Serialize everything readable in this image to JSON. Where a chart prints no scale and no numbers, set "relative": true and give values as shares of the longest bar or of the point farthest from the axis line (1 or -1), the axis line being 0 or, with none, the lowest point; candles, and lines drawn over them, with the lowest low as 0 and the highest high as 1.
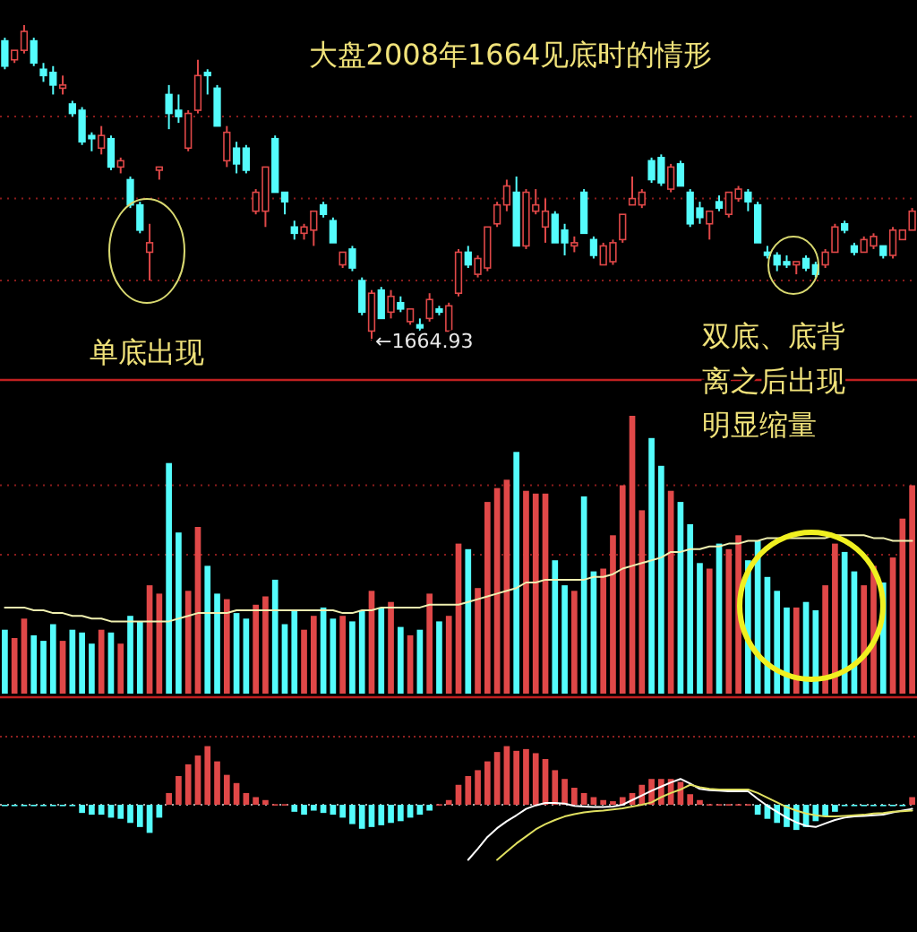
{
  "chart_data": [
    {
      "type": "candlestick",
      "relative": true,
      "title": "大盘2008年1664见底时的情形",
      "annotations": [
        "单底出现",
        "←1664.93",
        "双底、底背离之后出现明显缩量"
      ],
      "ref_lines": [
        {
          "axis": "y",
          "value": 0.71,
          "color": "#8a1c1c",
          "line_style": "dotted"
        },
        {
          "axis": "y",
          "value": 0.45,
          "color": "#8a1c1c",
          "line_style": "dotted"
        },
        {
          "axis": "y",
          "value": 0.19,
          "color": "#8a1c1c",
          "line_style": "dotted"
        }
      ],
      "ohlc": [
        [
          0.95,
          0.96,
          0.86,
          0.87
        ],
        [
          0.89,
          0.92,
          0.88,
          0.92
        ],
        [
          0.92,
          1.0,
          0.91,
          0.98
        ],
        [
          0.95,
          0.96,
          0.87,
          0.88
        ],
        [
          0.86,
          0.88,
          0.82,
          0.84
        ],
        [
          0.85,
          0.87,
          0.78,
          0.81
        ],
        [
          0.8,
          0.84,
          0.78,
          0.81
        ],
        [
          0.75,
          0.76,
          0.71,
          0.72
        ],
        [
          0.73,
          0.74,
          0.62,
          0.63
        ],
        [
          0.65,
          0.66,
          0.6,
          0.64
        ],
        [
          0.61,
          0.68,
          0.59,
          0.65
        ],
        [
          0.64,
          0.65,
          0.54,
          0.55
        ],
        [
          0.55,
          0.58,
          0.53,
          0.57
        ],
        [
          0.51,
          0.52,
          0.42,
          0.43
        ],
        [
          0.43,
          0.44,
          0.34,
          0.35
        ],
        [
          0.28,
          0.37,
          0.19,
          0.31
        ],
        [
          0.54,
          0.55,
          0.51,
          0.55
        ],
        [
          0.78,
          0.81,
          0.67,
          0.72
        ],
        [
          0.73,
          0.78,
          0.69,
          0.71
        ],
        [
          0.61,
          0.73,
          0.6,
          0.72
        ],
        [
          0.73,
          0.89,
          0.72,
          0.84
        ],
        [
          0.85,
          0.86,
          0.78,
          0.84
        ],
        [
          0.8,
          0.81,
          0.68,
          0.68
        ],
        [
          0.57,
          0.68,
          0.55,
          0.66
        ],
        [
          0.61,
          0.63,
          0.53,
          0.56
        ],
        [
          0.61,
          0.62,
          0.53,
          0.54
        ],
        [
          0.41,
          0.48,
          0.4,
          0.47
        ],
        [
          0.41,
          0.55,
          0.36,
          0.55
        ],
        [
          0.64,
          0.65,
          0.47,
          0.47
        ],
        [
          0.47,
          0.47,
          0.4,
          0.44
        ],
        [
          0.36,
          0.38,
          0.32,
          0.34
        ],
        [
          0.34,
          0.37,
          0.32,
          0.36
        ],
        [
          0.35,
          0.41,
          0.3,
          0.41
        ],
        [
          0.43,
          0.44,
          0.39,
          0.4
        ],
        [
          0.38,
          0.39,
          0.31,
          0.31
        ],
        [
          0.24,
          0.28,
          0.23,
          0.28
        ],
        [
          0.29,
          0.3,
          0.22,
          0.23
        ],
        [
          0.19,
          0.2,
          0.08,
          0.09
        ],
        [
          0.03,
          0.16,
          0.0,
          0.15
        ],
        [
          0.16,
          0.17,
          0.07,
          0.07
        ],
        [
          0.09,
          0.16,
          0.07,
          0.14
        ],
        [
          0.12,
          0.14,
          0.09,
          0.1
        ],
        [
          0.06,
          0.1,
          0.05,
          0.1
        ],
        [
          0.05,
          0.07,
          0.02,
          0.04
        ],
        [
          0.07,
          0.15,
          0.06,
          0.13
        ],
        [
          0.1,
          0.11,
          0.08,
          0.09
        ],
        [
          0.03,
          0.12,
          0.02,
          0.11
        ],
        [
          0.15,
          0.29,
          0.14,
          0.28
        ],
        [
          0.28,
          0.3,
          0.23,
          0.24
        ],
        [
          0.21,
          0.27,
          0.2,
          0.26
        ],
        [
          0.23,
          0.36,
          0.22,
          0.36
        ],
        [
          0.37,
          0.44,
          0.36,
          0.43
        ],
        [
          0.43,
          0.51,
          0.41,
          0.49
        ],
        [
          0.47,
          0.52,
          0.3,
          0.3
        ],
        [
          0.3,
          0.48,
          0.29,
          0.47
        ],
        [
          0.41,
          0.48,
          0.4,
          0.43
        ],
        [
          0.36,
          0.45,
          0.31,
          0.41
        ],
        [
          0.4,
          0.41,
          0.31,
          0.31
        ],
        [
          0.35,
          0.37,
          0.27,
          0.31
        ],
        [
          0.3,
          0.33,
          0.28,
          0.31
        ],
        [
          0.47,
          0.48,
          0.34,
          0.34
        ],
        [
          0.32,
          0.33,
          0.26,
          0.27
        ],
        [
          0.24,
          0.31,
          0.24,
          0.3
        ],
        [
          0.25,
          0.32,
          0.24,
          0.31
        ],
        [
          0.32,
          0.4,
          0.31,
          0.4
        ],
        [
          0.43,
          0.52,
          0.43,
          0.45
        ],
        [
          0.43,
          0.48,
          0.42,
          0.47
        ],
        [
          0.57,
          0.58,
          0.5,
          0.51
        ],
        [
          0.58,
          0.59,
          0.49,
          0.5
        ],
        [
          0.48,
          0.56,
          0.47,
          0.55
        ],
        [
          0.56,
          0.57,
          0.49,
          0.49
        ],
        [
          0.47,
          0.48,
          0.36,
          0.37
        ],
        [
          0.42,
          0.44,
          0.37,
          0.39
        ],
        [
          0.37,
          0.41,
          0.32,
          0.41
        ],
        [
          0.44,
          0.46,
          0.41,
          0.42
        ],
        [
          0.4,
          0.47,
          0.39,
          0.47
        ],
        [
          0.45,
          0.49,
          0.44,
          0.48
        ],
        [
          0.47,
          0.48,
          0.41,
          0.44
        ],
        [
          0.43,
          0.44,
          0.31,
          0.31
        ],
        [
          0.28,
          0.3,
          0.26,
          0.27
        ],
        [
          0.27,
          0.28,
          0.22,
          0.24
        ],
        [
          0.25,
          0.27,
          0.23,
          0.24
        ],
        [
          0.24,
          0.25,
          0.21,
          0.25
        ],
        [
          0.26,
          0.27,
          0.22,
          0.23
        ],
        [
          0.24,
          0.25,
          0.2,
          0.21
        ],
        [
          0.24,
          0.29,
          0.23,
          0.28
        ],
        [
          0.28,
          0.37,
          0.28,
          0.36
        ],
        [
          0.37,
          0.38,
          0.34,
          0.35
        ],
        [
          0.3,
          0.31,
          0.27,
          0.28
        ],
        [
          0.28,
          0.33,
          0.28,
          0.32
        ],
        [
          0.3,
          0.34,
          0.29,
          0.33
        ],
        [
          0.3,
          0.3,
          0.26,
          0.27
        ],
        [
          0.27,
          0.36,
          0.26,
          0.35
        ],
        [
          0.32,
          0.35,
          0.32,
          0.35
        ],
        [
          0.35,
          0.42,
          0.35,
          0.41
        ]
      ],
      "colors": [
        "#54fcfc",
        "#e04848",
        "#e04848",
        "#54fcfc",
        "#54fcfc",
        "#54fcfc",
        "#e04848",
        "#54fcfc",
        "#54fcfc",
        "#54fcfc",
        "#e04848",
        "#54fcfc",
        "#e04848",
        "#54fcfc",
        "#54fcfc",
        "#e04848",
        "#e04848",
        "#54fcfc",
        "#54fcfc",
        "#e04848",
        "#e04848",
        "#54fcfc",
        "#54fcfc",
        "#e04848",
        "#54fcfc",
        "#54fcfc",
        "#e04848",
        "#e04848",
        "#54fcfc",
        "#54fcfc",
        "#54fcfc",
        "#e04848",
        "#e04848",
        "#54fcfc",
        "#54fcfc",
        "#e04848",
        "#54fcfc",
        "#54fcfc",
        "#e04848",
        "#54fcfc",
        "#e04848",
        "#54fcfc",
        "#e04848",
        "#54fcfc",
        "#e04848",
        "#54fcfc",
        "#e04848",
        "#e04848",
        "#54fcfc",
        "#e04848",
        "#e04848",
        "#e04848",
        "#e04848",
        "#54fcfc",
        "#e04848",
        "#e04848",
        "#e04848",
        "#54fcfc",
        "#54fcfc",
        "#e04848",
        "#54fcfc",
        "#54fcfc",
        "#e04848",
        "#e04848",
        "#e04848",
        "#e04848",
        "#e04848",
        "#54fcfc",
        "#54fcfc",
        "#e04848",
        "#54fcfc",
        "#54fcfc",
        "#54fcfc",
        "#e04848",
        "#54fcfc",
        "#e04848",
        "#e04848",
        "#54fcfc",
        "#54fcfc",
        "#54fcfc",
        "#54fcfc",
        "#54fcfc",
        "#e04848",
        "#54fcfc",
        "#54fcfc",
        "#e04848",
        "#e04848",
        "#54fcfc",
        "#54fcfc",
        "#e04848",
        "#e04848",
        "#54fcfc",
        "#e04848",
        "#e04848",
        "#e04848"
      ]
    },
    {
      "type": "bar",
      "relative": true,
      "ref_lines": [
        {
          "axis": "y",
          "value": 0.75,
          "color": "#8a1c1c",
          "line_style": "dotted"
        },
        {
          "axis": "y",
          "value": 0.5,
          "color": "#8a1c1c",
          "line_style": "dotted"
        }
      ],
      "series": [
        {
          "type": "bar",
          "values": [
            0.23,
            0.2,
            0.27,
            0.21,
            0.19,
            0.25,
            0.19,
            0.23,
            0.22,
            0.18,
            0.23,
            0.22,
            0.18,
            0.28,
            0.26,
            0.39,
            0.36,
            0.83,
            0.58,
            0.37,
            0.6,
            0.46,
            0.36,
            0.34,
            0.29,
            0.27,
            0.32,
            0.35,
            0.41,
            0.25,
            0.3,
            0.23,
            0.28,
            0.31,
            0.27,
            0.28,
            0.26,
            0.3,
            0.37,
            0.31,
            0.33,
            0.24,
            0.21,
            0.23,
            0.36,
            0.26,
            0.28,
            0.54,
            0.52,
            0.38,
            0.69,
            0.74,
            0.77,
            0.87,
            0.73,
            0.72,
            0.72,
            0.48,
            0.39,
            0.37,
            0.71,
            0.44,
            0.45,
            0.57,
            0.75,
            1.0,
            0.66,
            0.92,
            0.82,
            0.73,
            0.69,
            0.61,
            0.47,
            0.45,
            0.54,
            0.52,
            0.57,
            0.48,
            0.55,
            0.42,
            0.37,
            0.31,
            0.31,
            0.33,
            0.3,
            0.39,
            0.54,
            0.51,
            0.44,
            0.39,
            0.46,
            0.4,
            0.49,
            0.63,
            0.75
          ],
          "colors": [
            "#54fcfc",
            "#e04848",
            "#e04848",
            "#54fcfc",
            "#54fcfc",
            "#54fcfc",
            "#e04848",
            "#54fcfc",
            "#54fcfc",
            "#54fcfc",
            "#e04848",
            "#54fcfc",
            "#e04848",
            "#54fcfc",
            "#54fcfc",
            "#e04848",
            "#e04848",
            "#54fcfc",
            "#54fcfc",
            "#e04848",
            "#e04848",
            "#54fcfc",
            "#54fcfc",
            "#e04848",
            "#54fcfc",
            "#54fcfc",
            "#e04848",
            "#e04848",
            "#54fcfc",
            "#54fcfc",
            "#54fcfc",
            "#e04848",
            "#e04848",
            "#54fcfc",
            "#54fcfc",
            "#e04848",
            "#54fcfc",
            "#54fcfc",
            "#e04848",
            "#54fcfc",
            "#e04848",
            "#54fcfc",
            "#e04848",
            "#54fcfc",
            "#e04848",
            "#54fcfc",
            "#e04848",
            "#e04848",
            "#54fcfc",
            "#e04848",
            "#e04848",
            "#e04848",
            "#e04848",
            "#54fcfc",
            "#e04848",
            "#e04848",
            "#e04848",
            "#54fcfc",
            "#54fcfc",
            "#e04848",
            "#54fcfc",
            "#54fcfc",
            "#e04848",
            "#e04848",
            "#e04848",
            "#e04848",
            "#e04848",
            "#54fcfc",
            "#54fcfc",
            "#e04848",
            "#54fcfc",
            "#54fcfc",
            "#54fcfc",
            "#e04848",
            "#54fcfc",
            "#e04848",
            "#e04848",
            "#54fcfc",
            "#54fcfc",
            "#54fcfc",
            "#54fcfc",
            "#54fcfc",
            "#e04848",
            "#54fcfc",
            "#54fcfc",
            "#e04848",
            "#e04848",
            "#54fcfc",
            "#54fcfc",
            "#e04848",
            "#e04848",
            "#54fcfc",
            "#e04848",
            "#e04848",
            "#e04848"
          ]
        },
        {
          "type": "line",
          "color": "#f0f0b0",
          "values": [
            0.31,
            0.31,
            0.31,
            0.3,
            0.3,
            0.29,
            0.29,
            0.28,
            0.28,
            0.27,
            0.27,
            0.26,
            0.26,
            0.26,
            0.26,
            0.26,
            0.26,
            0.26,
            0.27,
            0.28,
            0.29,
            0.29,
            0.29,
            0.29,
            0.3,
            0.3,
            0.3,
            0.3,
            0.3,
            0.3,
            0.3,
            0.3,
            0.3,
            0.3,
            0.3,
            0.29,
            0.29,
            0.3,
            0.3,
            0.31,
            0.31,
            0.31,
            0.31,
            0.31,
            0.32,
            0.32,
            0.32,
            0.32,
            0.33,
            0.34,
            0.35,
            0.36,
            0.37,
            0.38,
            0.4,
            0.4,
            0.41,
            0.41,
            0.41,
            0.41,
            0.41,
            0.42,
            0.42,
            0.43,
            0.45,
            0.46,
            0.47,
            0.48,
            0.49,
            0.51,
            0.51,
            0.52,
            0.52,
            0.53,
            0.53,
            0.54,
            0.54,
            0.55,
            0.55,
            0.56,
            0.56,
            0.56,
            0.56,
            0.56,
            0.56,
            0.56,
            0.57,
            0.57,
            0.57,
            0.57,
            0.56,
            0.56,
            0.55,
            0.55,
            0.55
          ]
        }
      ]
    },
    {
      "type": "bar",
      "relative": true,
      "ref_lines": [
        {
          "axis": "y",
          "value": 0,
          "color": "#aaaaaa",
          "line_style": "dotted"
        }
      ],
      "series": [
        {
          "type": "bar",
          "values": [
            -0.02,
            -0.02,
            -0.02,
            -0.02,
            -0.02,
            -0.02,
            -0.02,
            -0.02,
            -0.14,
            -0.17,
            -0.17,
            -0.22,
            -0.24,
            -0.31,
            -0.38,
            -0.48,
            -0.22,
            0.2,
            0.49,
            0.69,
            0.84,
            1.0,
            0.74,
            0.51,
            0.37,
            0.2,
            0.13,
            0.08,
            0.01,
            0.01,
            -0.12,
            -0.17,
            -0.1,
            -0.14,
            -0.17,
            -0.22,
            -0.33,
            -0.41,
            -0.38,
            -0.35,
            -0.31,
            -0.28,
            -0.22,
            -0.17,
            -0.1,
            0.01,
            0.08,
            0.34,
            0.49,
            0.59,
            0.74,
            0.9,
            1.0,
            0.92,
            0.95,
            0.88,
            0.78,
            0.59,
            0.44,
            0.29,
            0.2,
            0.13,
            0.08,
            0.06,
            0.13,
            0.2,
            0.34,
            0.44,
            0.44,
            0.44,
            0.39,
            0.18,
            0.08,
            0.01,
            0.01,
            0.01,
            0.01,
            0.01,
            -0.17,
            -0.24,
            -0.31,
            -0.38,
            -0.43,
            -0.38,
            -0.28,
            -0.2,
            -0.12,
            -0.02,
            -0.02,
            -0.02,
            -0.02,
            -0.02,
            -0.02,
            -0.02,
            0.13
          ],
          "colors": [
            "#54fcfc",
            "#54fcfc",
            "#54fcfc",
            "#54fcfc",
            "#54fcfc",
            "#54fcfc",
            "#54fcfc",
            "#54fcfc",
            "#54fcfc",
            "#54fcfc",
            "#54fcfc",
            "#54fcfc",
            "#54fcfc",
            "#54fcfc",
            "#54fcfc",
            "#54fcfc",
            "#54fcfc",
            "#e04848",
            "#e04848",
            "#e04848",
            "#e04848",
            "#e04848",
            "#e04848",
            "#e04848",
            "#e04848",
            "#e04848",
            "#e04848",
            "#e04848",
            "#e04848",
            "#e04848",
            "#54fcfc",
            "#54fcfc",
            "#54fcfc",
            "#54fcfc",
            "#54fcfc",
            "#54fcfc",
            "#54fcfc",
            "#54fcfc",
            "#54fcfc",
            "#54fcfc",
            "#54fcfc",
            "#54fcfc",
            "#54fcfc",
            "#54fcfc",
            "#54fcfc",
            "#e04848",
            "#e04848",
            "#e04848",
            "#e04848",
            "#e04848",
            "#e04848",
            "#e04848",
            "#e04848",
            "#e04848",
            "#e04848",
            "#e04848",
            "#e04848",
            "#e04848",
            "#e04848",
            "#e04848",
            "#e04848",
            "#e04848",
            "#e04848",
            "#e04848",
            "#e04848",
            "#e04848",
            "#e04848",
            "#e04848",
            "#e04848",
            "#e04848",
            "#e04848",
            "#e04848",
            "#e04848",
            "#e04848",
            "#e04848",
            "#e04848",
            "#e04848",
            "#e04848",
            "#54fcfc",
            "#54fcfc",
            "#54fcfc",
            "#54fcfc",
            "#54fcfc",
            "#54fcfc",
            "#54fcfc",
            "#54fcfc",
            "#54fcfc",
            "#54fcfc",
            "#54fcfc",
            "#54fcfc",
            "#54fcfc",
            "#54fcfc",
            "#54fcfc",
            "#54fcfc",
            "#e04848"
          ]
        },
        {
          "type": "line",
          "color": "#ffffff",
          "values": [
            null,
            null,
            null,
            null,
            null,
            null,
            null,
            null,
            null,
            null,
            null,
            null,
            null,
            null,
            null,
            null,
            null,
            null,
            null,
            null,
            null,
            null,
            null,
            null,
            null,
            null,
            null,
            null,
            null,
            null,
            null,
            null,
            null,
            null,
            null,
            null,
            null,
            null,
            null,
            null,
            null,
            null,
            null,
            null,
            null,
            null,
            null,
            null,
            -0.94,
            -0.75,
            -0.55,
            -0.4,
            -0.28,
            -0.18,
            -0.07,
            -0.01,
            0.03,
            0.03,
            0.02,
            -0.02,
            -0.03,
            -0.04,
            -0.04,
            -0.03,
            0.0,
            0.08,
            0.16,
            0.24,
            0.31,
            0.38,
            0.44,
            0.36,
            0.27,
            0.25,
            0.24,
            0.23,
            0.23,
            0.23,
            0.1,
            -0.02,
            -0.12,
            -0.22,
            -0.3,
            -0.36,
            -0.38,
            -0.32,
            -0.26,
            -0.22,
            -0.2,
            -0.19,
            -0.18,
            -0.17,
            -0.13,
            -0.1,
            -0.07
          ]
        },
        {
          "type": "line",
          "color": "#e0e060",
          "values": [
            null,
            null,
            null,
            null,
            null,
            null,
            null,
            null,
            null,
            null,
            null,
            null,
            null,
            null,
            null,
            null,
            null,
            null,
            null,
            null,
            null,
            null,
            null,
            null,
            null,
            null,
            null,
            null,
            null,
            null,
            null,
            null,
            null,
            null,
            null,
            null,
            null,
            null,
            null,
            null,
            null,
            null,
            null,
            null,
            null,
            null,
            null,
            null,
            null,
            null,
            null,
            -0.94,
            -0.8,
            -0.66,
            -0.54,
            -0.42,
            -0.33,
            -0.26,
            -0.2,
            -0.16,
            -0.13,
            -0.11,
            -0.1,
            -0.08,
            -0.06,
            -0.03,
            0.0,
            0.04,
            0.13,
            0.2,
            0.26,
            0.34,
            0.3,
            0.27,
            0.26,
            0.26,
            0.26,
            0.26,
            0.2,
            0.12,
            0.04,
            -0.04,
            -0.1,
            -0.15,
            -0.18,
            -0.2,
            -0.2,
            -0.19,
            -0.18,
            -0.17,
            -0.15,
            -0.14,
            -0.12,
            -0.11,
            -0.1
          ]
        }
      ]
    }
  ]
}
